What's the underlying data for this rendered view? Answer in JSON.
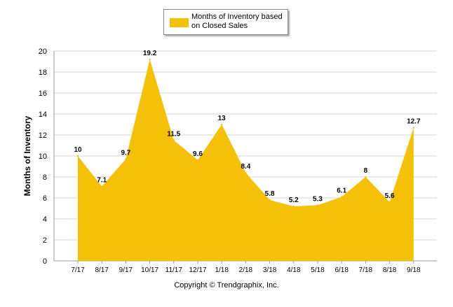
{
  "chart_data": {
    "type": "area",
    "categories": [
      "7/17",
      "8/17",
      "9/17",
      "10/17",
      "11/17",
      "12/17",
      "1/18",
      "2/18",
      "3/18",
      "4/18",
      "5/18",
      "6/18",
      "7/18",
      "8/18",
      "9/18"
    ],
    "series": [
      {
        "name": "Months of Inventory based on Closed Sales",
        "values": [
          10,
          7.1,
          9.7,
          19.2,
          11.5,
          9.6,
          13,
          8.4,
          5.8,
          5.2,
          5.3,
          6.1,
          8,
          5.6,
          12.7
        ],
        "labels": [
          "10",
          "7.1",
          "9.7",
          "19.2",
          "11.5",
          "9.6",
          "13",
          "8.4",
          "5.8",
          "5.2",
          "5.3",
          "6.1",
          "8",
          "5.6",
          "12.7"
        ],
        "color": "#f5c106"
      }
    ],
    "ylabel": "Months of Inventory",
    "ylim": [
      0,
      20
    ],
    "yticks": [
      0,
      2,
      4,
      6,
      8,
      10,
      12,
      14,
      16,
      18,
      20
    ],
    "grid": true,
    "legend_position": "top"
  },
  "legend": {
    "label_line1": "Months of Inventory based",
    "label_line2": "on Closed Sales"
  },
  "footer": {
    "copyright": "Copyright © Trendgraphix, Inc."
  },
  "colors": {
    "area": "#f5c106",
    "grid": "#d4d4d4",
    "axis": "#9a9a9a"
  }
}
